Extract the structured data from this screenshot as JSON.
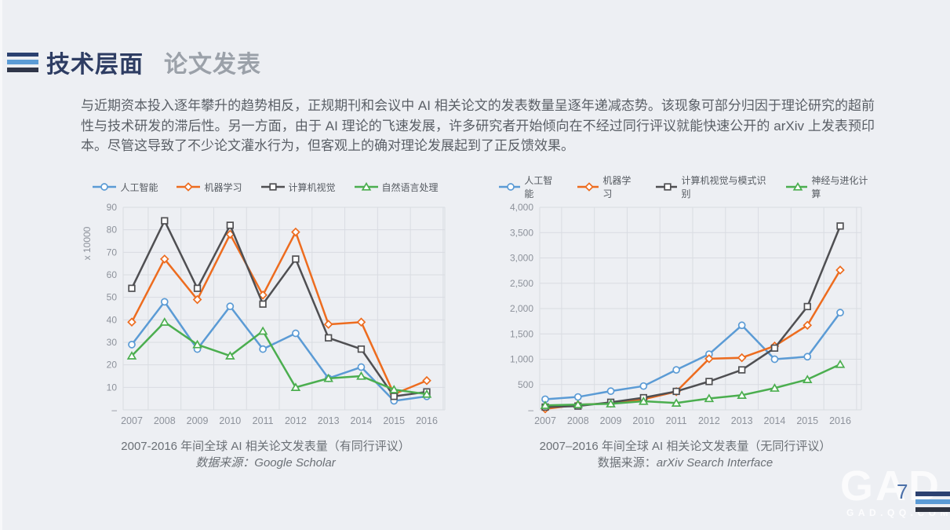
{
  "header": {
    "title_primary": "技术层面",
    "title_secondary": "论文发表"
  },
  "paragraph": "与近期资本投入逐年攀升的趋势相反，正规期刊和会议中 AI 相关论文的发表数量呈逐年递减态势。该现象可部分归因于理论研究的超前性与技术研发的滞后性。另一方面，由于 AI 理论的飞速发展，许多研究者开始倾向在不经过同行评议就能快速公开的 arXiv 上发表预印本。尽管这导致了不少论文灌水行为，但客观上的确对理论发展起到了正反馈效果。",
  "colors": {
    "background": "#edeff3",
    "title_navy": "#2e3d63",
    "title_gray": "#9ba1a9",
    "accent_blue": "#5b9bd5",
    "accent_orange": "#ed6c1f",
    "accent_dark": "#4f4f52",
    "accent_green": "#4bae4f",
    "grid": "#d9dce2",
    "axis_text": "#8d929b"
  },
  "chart_data": [
    {
      "type": "line",
      "title": "2007-2016 年间全球 AI 相关论文发表量（有同行评议）",
      "source_label": "数据来源：",
      "source": "Google Scholar",
      "unit_label": "x 10000",
      "categories": [
        "2007",
        "2008",
        "2009",
        "2010",
        "2011",
        "2012",
        "2013",
        "2014",
        "2015",
        "2016"
      ],
      "ylim": [
        0,
        90
      ],
      "ytick_step": 10,
      "ytick_format": "plain",
      "zero_tick_label": "–",
      "grid": true,
      "legend_position": "top",
      "series": [
        {
          "name": "人工智能",
          "color": "#5b9bd5",
          "marker": "circle",
          "values": [
            29,
            48,
            27,
            46,
            27,
            34,
            14,
            19,
            4,
            6
          ]
        },
        {
          "name": "机器学习",
          "color": "#ed6c1f",
          "marker": "diamond",
          "values": [
            39,
            67,
            49,
            78,
            51,
            79,
            38,
            39,
            7,
            13
          ]
        },
        {
          "name": "计算机视觉",
          "color": "#4f4f52",
          "marker": "square",
          "values": [
            54,
            84,
            54,
            82,
            47,
            67,
            32,
            27,
            6,
            8
          ]
        },
        {
          "name": "自然语言处理",
          "color": "#4bae4f",
          "marker": "triangle",
          "values": [
            24,
            39,
            29,
            24,
            35,
            10,
            14,
            15,
            9,
            7
          ]
        }
      ]
    },
    {
      "type": "line",
      "title": "2007–2016 年间全球 AI 相关论文发表量（无同行评议）",
      "source_label": "数据来源：",
      "source": "arXiv Search Interface",
      "unit_label": "",
      "categories": [
        "2007",
        "2008",
        "2009",
        "2010",
        "2011",
        "2012",
        "2013",
        "2014",
        "2015",
        "2016"
      ],
      "ylim": [
        0,
        4000
      ],
      "ytick_step": 500,
      "ytick_format": "comma",
      "zero_tick_label": "–",
      "grid": true,
      "legend_position": "top",
      "series": [
        {
          "name": "人工智能",
          "color": "#5b9bd5",
          "marker": "circle",
          "values": [
            210,
            255,
            370,
            470,
            790,
            1100,
            1670,
            1000,
            1050,
            1920
          ]
        },
        {
          "name": "机器学习",
          "color": "#ed6c1f",
          "marker": "diamond",
          "values": [
            20,
            100,
            130,
            210,
            360,
            1010,
            1030,
            1260,
            1670,
            2760
          ]
        },
        {
          "name": "计算机视觉与模式识别",
          "color": "#4f4f52",
          "marker": "square",
          "values": [
            55,
            75,
            150,
            240,
            365,
            560,
            790,
            1220,
            2040,
            3630
          ]
        },
        {
          "name": "神经与进化计算",
          "color": "#4bae4f",
          "marker": "triangle",
          "values": [
            90,
            105,
            120,
            170,
            135,
            225,
            290,
            430,
            600,
            900
          ]
        }
      ]
    }
  ],
  "footer": {
    "page_number": "7",
    "watermark_logo": "GAD",
    "watermark_url": "GAD.QQ.COM"
  }
}
